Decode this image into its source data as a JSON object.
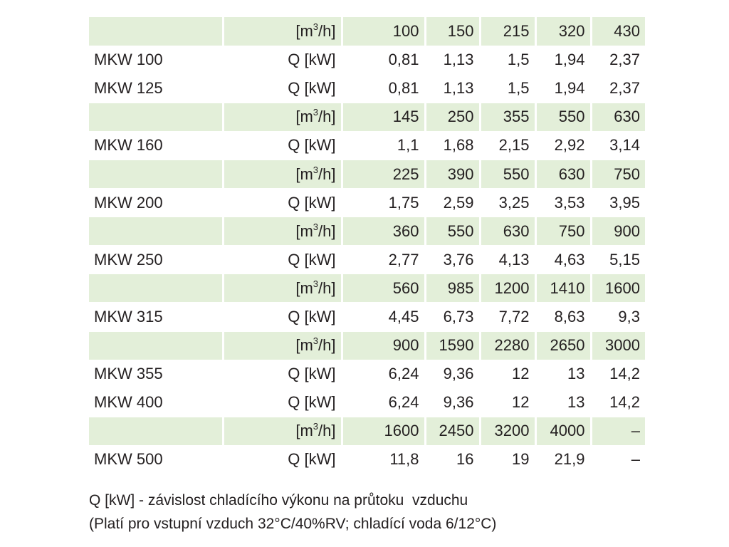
{
  "table": {
    "rows": [
      {
        "kind": "flow",
        "label": "",
        "unit_pre": "[m",
        "unit_sup": "3",
        "unit_post": "/h]",
        "values": [
          "100",
          "150",
          "215",
          "320",
          "430"
        ]
      },
      {
        "kind": "power",
        "label": "MKW 100",
        "unit": "Q [kW]",
        "values": [
          "0,81",
          "1,13",
          "1,5",
          "1,94",
          "2,37"
        ]
      },
      {
        "kind": "power",
        "label": "MKW 125",
        "unit": "Q [kW]",
        "values": [
          "0,81",
          "1,13",
          "1,5",
          "1,94",
          "2,37"
        ]
      },
      {
        "kind": "flow",
        "label": "",
        "unit_pre": "[m",
        "unit_sup": "3",
        "unit_post": "/h]",
        "values": [
          "145",
          "250",
          "355",
          "550",
          "630"
        ]
      },
      {
        "kind": "power",
        "label": "MKW 160",
        "unit": "Q [kW]",
        "values": [
          "1,1",
          "1,68",
          "2,15",
          "2,92",
          "3,14"
        ]
      },
      {
        "kind": "flow",
        "label": "",
        "unit_pre": "[m",
        "unit_sup": "3",
        "unit_post": "/h]",
        "values": [
          "225",
          "390",
          "550",
          "630",
          "750"
        ]
      },
      {
        "kind": "power",
        "label": "MKW 200",
        "unit": "Q [kW]",
        "values": [
          "1,75",
          "2,59",
          "3,25",
          "3,53",
          "3,95"
        ]
      },
      {
        "kind": "flow",
        "label": "",
        "unit_pre": "[m",
        "unit_sup": "3",
        "unit_post": "/h]",
        "values": [
          "360",
          "550",
          "630",
          "750",
          "900"
        ]
      },
      {
        "kind": "power",
        "label": "MKW 250",
        "unit": "Q [kW]",
        "values": [
          "2,77",
          "3,76",
          "4,13",
          "4,63",
          "5,15"
        ]
      },
      {
        "kind": "flow",
        "label": "",
        "unit_pre": "[m",
        "unit_sup": "3",
        "unit_post": "/h]",
        "values": [
          "560",
          "985",
          "1200",
          "1410",
          "1600"
        ]
      },
      {
        "kind": "power",
        "label": "MKW 315",
        "unit": "Q [kW]",
        "values": [
          "4,45",
          "6,73",
          "7,72",
          "8,63",
          "9,3"
        ]
      },
      {
        "kind": "flow",
        "label": "",
        "unit_pre": "[m",
        "unit_sup": "3",
        "unit_post": "/h]",
        "values": [
          "900",
          "1590",
          "2280",
          "2650",
          "3000"
        ]
      },
      {
        "kind": "power",
        "label": "MKW 355",
        "unit": "Q [kW]",
        "values": [
          "6,24",
          "9,36",
          "12",
          "13",
          "14,2"
        ]
      },
      {
        "kind": "power",
        "label": "MKW 400",
        "unit": "Q [kW]",
        "values": [
          "6,24",
          "9,36",
          "12",
          "13",
          "14,2"
        ]
      },
      {
        "kind": "flow",
        "label": "",
        "unit_pre": "[m",
        "unit_sup": "3",
        "unit_post": "/h]",
        "values": [
          "1600",
          "2450",
          "3200",
          "4000",
          "–"
        ]
      },
      {
        "kind": "power",
        "label": "MKW 500",
        "unit": "Q [kW]",
        "values": [
          "11,8",
          "16",
          "19",
          "21,9",
          "–"
        ]
      }
    ],
    "highlight_color": "#e3efd9"
  },
  "note": {
    "line1": "Q [kW] - závislost chladícího výkonu na průtoku  vzduchu",
    "line2": "(Platí pro vstupní vzduch 32°C/40%RV; chladící voda 6/12°C)"
  }
}
